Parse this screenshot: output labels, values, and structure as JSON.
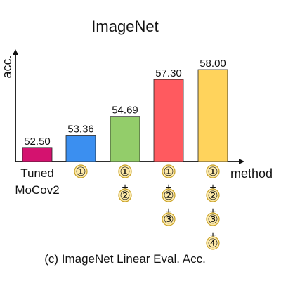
{
  "chart_data": {
    "type": "bar",
    "title": "ImageNet",
    "caption": "(c) ImageNet Linear Eval. Acc.",
    "xlabel": "method",
    "ylabel": "acc.",
    "ylim": [
      51.5,
      58.2
    ],
    "grid": false,
    "legend": "none",
    "categories": [
      [
        "Tuned",
        "MoCov2"
      ],
      [
        "①"
      ],
      [
        "①",
        "+",
        "②"
      ],
      [
        "①",
        "+",
        "②",
        "+",
        "③"
      ],
      [
        "①",
        "+",
        "②",
        "+",
        "③",
        "+",
        "④"
      ]
    ],
    "values": [
      52.5,
      53.36,
      54.69,
      57.3,
      58.0
    ],
    "data_labels": [
      "52.50",
      "53.36",
      "54.69",
      "57.30",
      "58.00"
    ],
    "colors": [
      "#d4126f",
      "#3b8ff0",
      "#93cd6a",
      "#ff5a5f",
      "#ffd35c"
    ],
    "marker_fill": "#fde9a8",
    "marker_stroke": "#c9a227"
  }
}
